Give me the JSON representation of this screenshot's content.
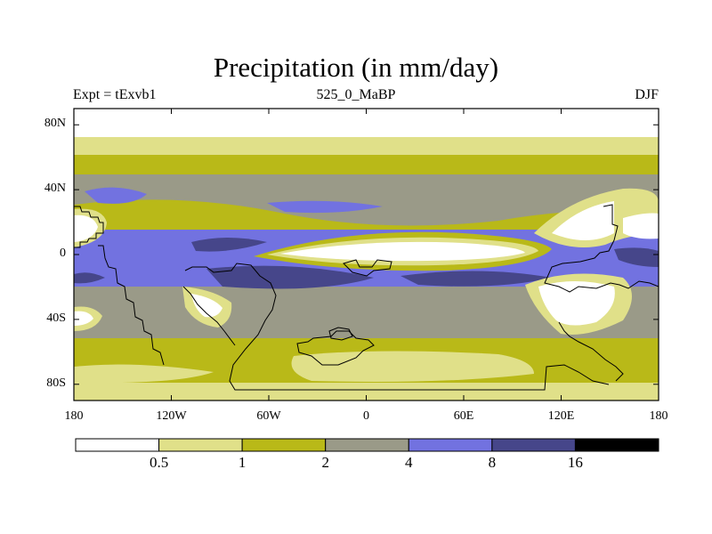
{
  "chart_data": {
    "type": "heatmap",
    "title": "Precipitation (in mm/day)",
    "subtitle_left": "Expt = tExvb1",
    "subtitle_center": "525_0_MaBP",
    "subtitle_right": "DJF",
    "ylim": [
      -90,
      90
    ],
    "xlim": [
      -180,
      180
    ],
    "y_ticks": [
      {
        "value": 80,
        "label": "80N"
      },
      {
        "value": 40,
        "label": "40N"
      },
      {
        "value": 0,
        "label": "0"
      },
      {
        "value": -40,
        "label": "40S"
      },
      {
        "value": -80,
        "label": "80S"
      }
    ],
    "x_ticks": [
      {
        "value": -180,
        "label": "180"
      },
      {
        "value": -120,
        "label": "120W"
      },
      {
        "value": -60,
        "label": "60W"
      },
      {
        "value": 0,
        "label": "0"
      },
      {
        "value": 60,
        "label": "60E"
      },
      {
        "value": 120,
        "label": "120E"
      },
      {
        "value": 180,
        "label": "180"
      }
    ],
    "colorbar": {
      "levels": [
        "0.5",
        "1",
        "2",
        "4",
        "8",
        "16"
      ],
      "colors": [
        "#ffffff",
        "#e0e089",
        "#b9b918",
        "#9a9a88",
        "#7272e0",
        "#46468a",
        "#000000"
      ]
    }
  }
}
